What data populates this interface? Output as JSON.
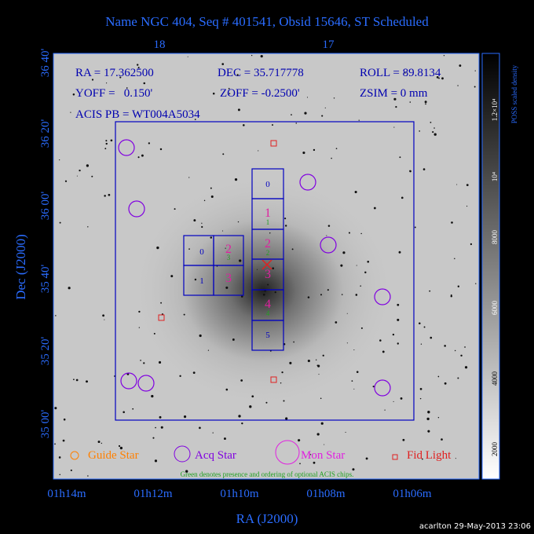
{
  "title": "Name NGC 404, Seq # 401541, Obsid 15646, ST Scheduled",
  "top_axis": [
    "18",
    "17"
  ],
  "left_axis": [
    "36 40'",
    "36 20'",
    "36 00'",
    "35 40'",
    "35 20'",
    "35 00'"
  ],
  "bottom_axis": [
    "01h14m",
    "01h12m",
    "01h10m",
    "01h08m",
    "01h06m"
  ],
  "x_label": "RA (J2000)",
  "y_label": "Dec (J2000)",
  "header": {
    "ra": "RA = 17.362500",
    "dec": "DEC = 35.717778",
    "roll": "ROLL = 89.8134",
    "yoff": "YOFF =   0.150'",
    "zoff": "ZOFF = -0.2500'",
    "zsim": "ZSIM = 0 mm",
    "acis": "ACIS PB = WT004A5034"
  },
  "chips": {
    "column": [
      "0",
      "1",
      "2",
      "3",
      "4",
      "5"
    ],
    "left": [
      "0",
      "2",
      "1",
      "3"
    ],
    "green": [
      "1",
      "2",
      "3",
      "4"
    ]
  },
  "legend": [
    "Guide Star",
    "Acq Star",
    "Mon Star",
    "Fid Light"
  ],
  "note": "Green denotes presence and ordering of optional ACIS chips.",
  "colorbar": {
    "title": "POSS scaled density",
    "labels": [
      "2000",
      "4000",
      "6000",
      "8000",
      "10⁴",
      "1.2×10⁴"
    ]
  },
  "footer": "acarlton 29-May-2013 23:06"
}
